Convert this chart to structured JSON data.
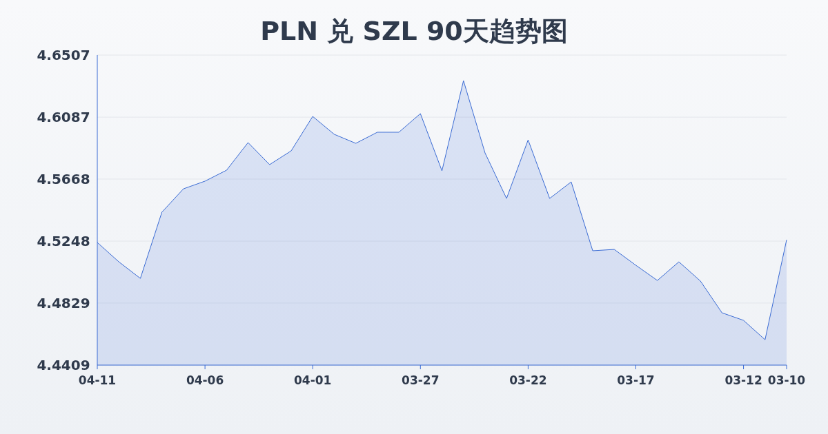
{
  "chart_data": {
    "type": "area",
    "title": "PLN 兑 SZL 90天趋势图",
    "categories": [
      "04-11",
      null,
      null,
      null,
      null,
      "04-06",
      null,
      null,
      null,
      null,
      "04-01",
      null,
      null,
      null,
      null,
      "03-27",
      null,
      null,
      null,
      null,
      "03-22",
      null,
      null,
      null,
      null,
      "03-17",
      null,
      null,
      null,
      null,
      "03-12",
      null,
      "03-10"
    ],
    "series": [
      {
        "color": "#3a6bd4",
        "values": [
          4.5239,
          4.5108,
          4.4996,
          4.5444,
          4.5602,
          4.5654,
          4.5728,
          4.5915,
          4.5766,
          4.5859,
          4.6092,
          4.5971,
          4.591,
          4.5985,
          4.5985,
          4.6111,
          4.5724,
          4.6334,
          4.5845,
          4.5537,
          4.5933,
          4.5537,
          4.5649,
          4.5183,
          4.5192,
          4.5085,
          4.4982,
          4.5108,
          4.4978,
          4.4763,
          4.4712,
          4.4581,
          4.5257
        ]
      }
    ],
    "ylim": [
      4.4409,
      4.6507
    ],
    "yticks": [
      4.4409,
      4.4829,
      4.5248,
      4.5668,
      4.6087,
      4.6507
    ],
    "grid": "y"
  }
}
